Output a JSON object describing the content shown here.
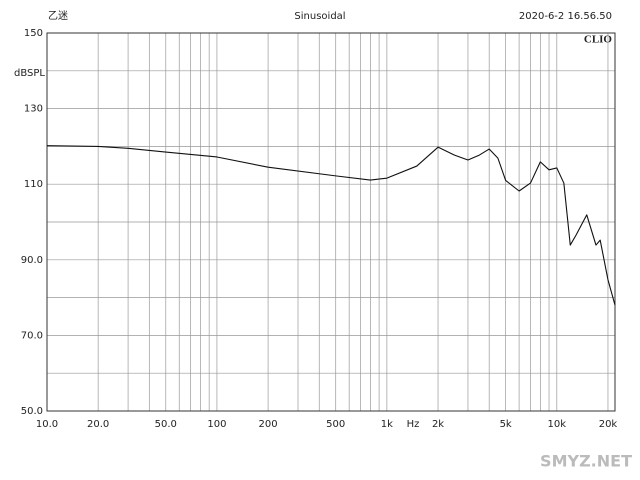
{
  "header": {
    "left": "乙迷",
    "center": "Sinusoidal",
    "right": "2020-6-2 16.56.50",
    "brand": "CLIO"
  },
  "watermark": "SMYZ.NET",
  "chart_data": {
    "type": "line",
    "xlabel": "Hz",
    "ylabel": "dBSPL",
    "log_x": true,
    "grid": true,
    "xlim": [
      10,
      22000
    ],
    "ylim": [
      50,
      150
    ],
    "xticks": [
      {
        "value": 10,
        "label": "10.0"
      },
      {
        "value": 20,
        "label": "20.0"
      },
      {
        "value": 50,
        "label": "50.0"
      },
      100,
      200,
      500,
      {
        "value": 1000,
        "label": "1k"
      },
      {
        "value": 2000,
        "label": "2k"
      },
      {
        "value": 5000,
        "label": "5k"
      },
      {
        "value": 10000,
        "label": "10k"
      },
      {
        "value": 20000,
        "label": "20k"
      }
    ],
    "x_minor_ticks": [
      30,
      40,
      60,
      70,
      80,
      90,
      300,
      400,
      600,
      700,
      800,
      900,
      3000,
      4000,
      6000,
      7000,
      8000,
      9000
    ],
    "yticks": [
      {
        "value": 50,
        "label": "50.0"
      },
      {
        "value": 70,
        "label": "70.0"
      },
      {
        "value": 90,
        "label": "90.0"
      },
      110,
      130,
      150
    ],
    "y_minor_ticks": [
      60,
      80,
      100,
      120,
      140
    ],
    "series": [
      {
        "color": "#111111",
        "x": [
          10,
          20,
          30,
          50,
          100,
          200,
          500,
          800,
          1000,
          1500,
          2000,
          2500,
          3000,
          3500,
          4000,
          4500,
          5000,
          6000,
          7000,
          8000,
          9000,
          10000,
          11000,
          12000,
          13000,
          15000,
          17000,
          18000,
          20000,
          22000
        ],
        "values": [
          120.2,
          120,
          119.5,
          118.5,
          117.2,
          114.5,
          112.2,
          111.1,
          111.6,
          114.8,
          119.8,
          117.7,
          116.4,
          117.7,
          119.3,
          116.9,
          111,
          108.2,
          110.3,
          115.9,
          113.8,
          114.3,
          110.3,
          93.9,
          96.6,
          101.9,
          93.9,
          95.2,
          84.7,
          78
        ]
      }
    ]
  }
}
